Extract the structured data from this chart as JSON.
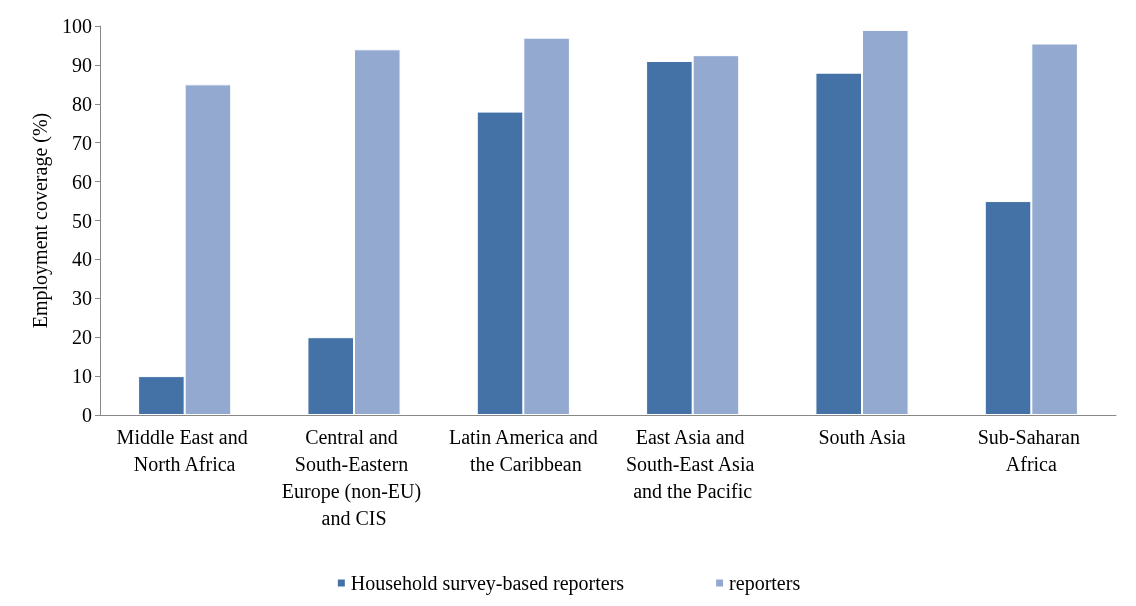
{
  "chart_data": {
    "type": "bar",
    "ylabel": "Employment coverage (%)",
    "categories": [
      "Middle East and North Africa",
      "Central and South-Eastern Europe (non-EU) and CIS",
      "Latin America and the Caribbean",
      "East Asia and South-East Asia and the Pacific",
      "South Asia",
      "Sub-Saharan Africa"
    ],
    "series": [
      {
        "name": "Household survey-based reporters",
        "color": "#4472a6",
        "values": [
          10,
          20,
          78,
          91,
          88,
          55
        ]
      },
      {
        "name": "reporters",
        "color": "#93a9d0",
        "values": [
          85,
          94,
          97,
          92.5,
          99,
          95.5
        ]
      }
    ],
    "ylim": [
      0,
      100
    ],
    "yticks": [
      0,
      10,
      20,
      30,
      40,
      50,
      60,
      70,
      80,
      90,
      100
    ],
    "grid": false,
    "legend": "bottom"
  }
}
